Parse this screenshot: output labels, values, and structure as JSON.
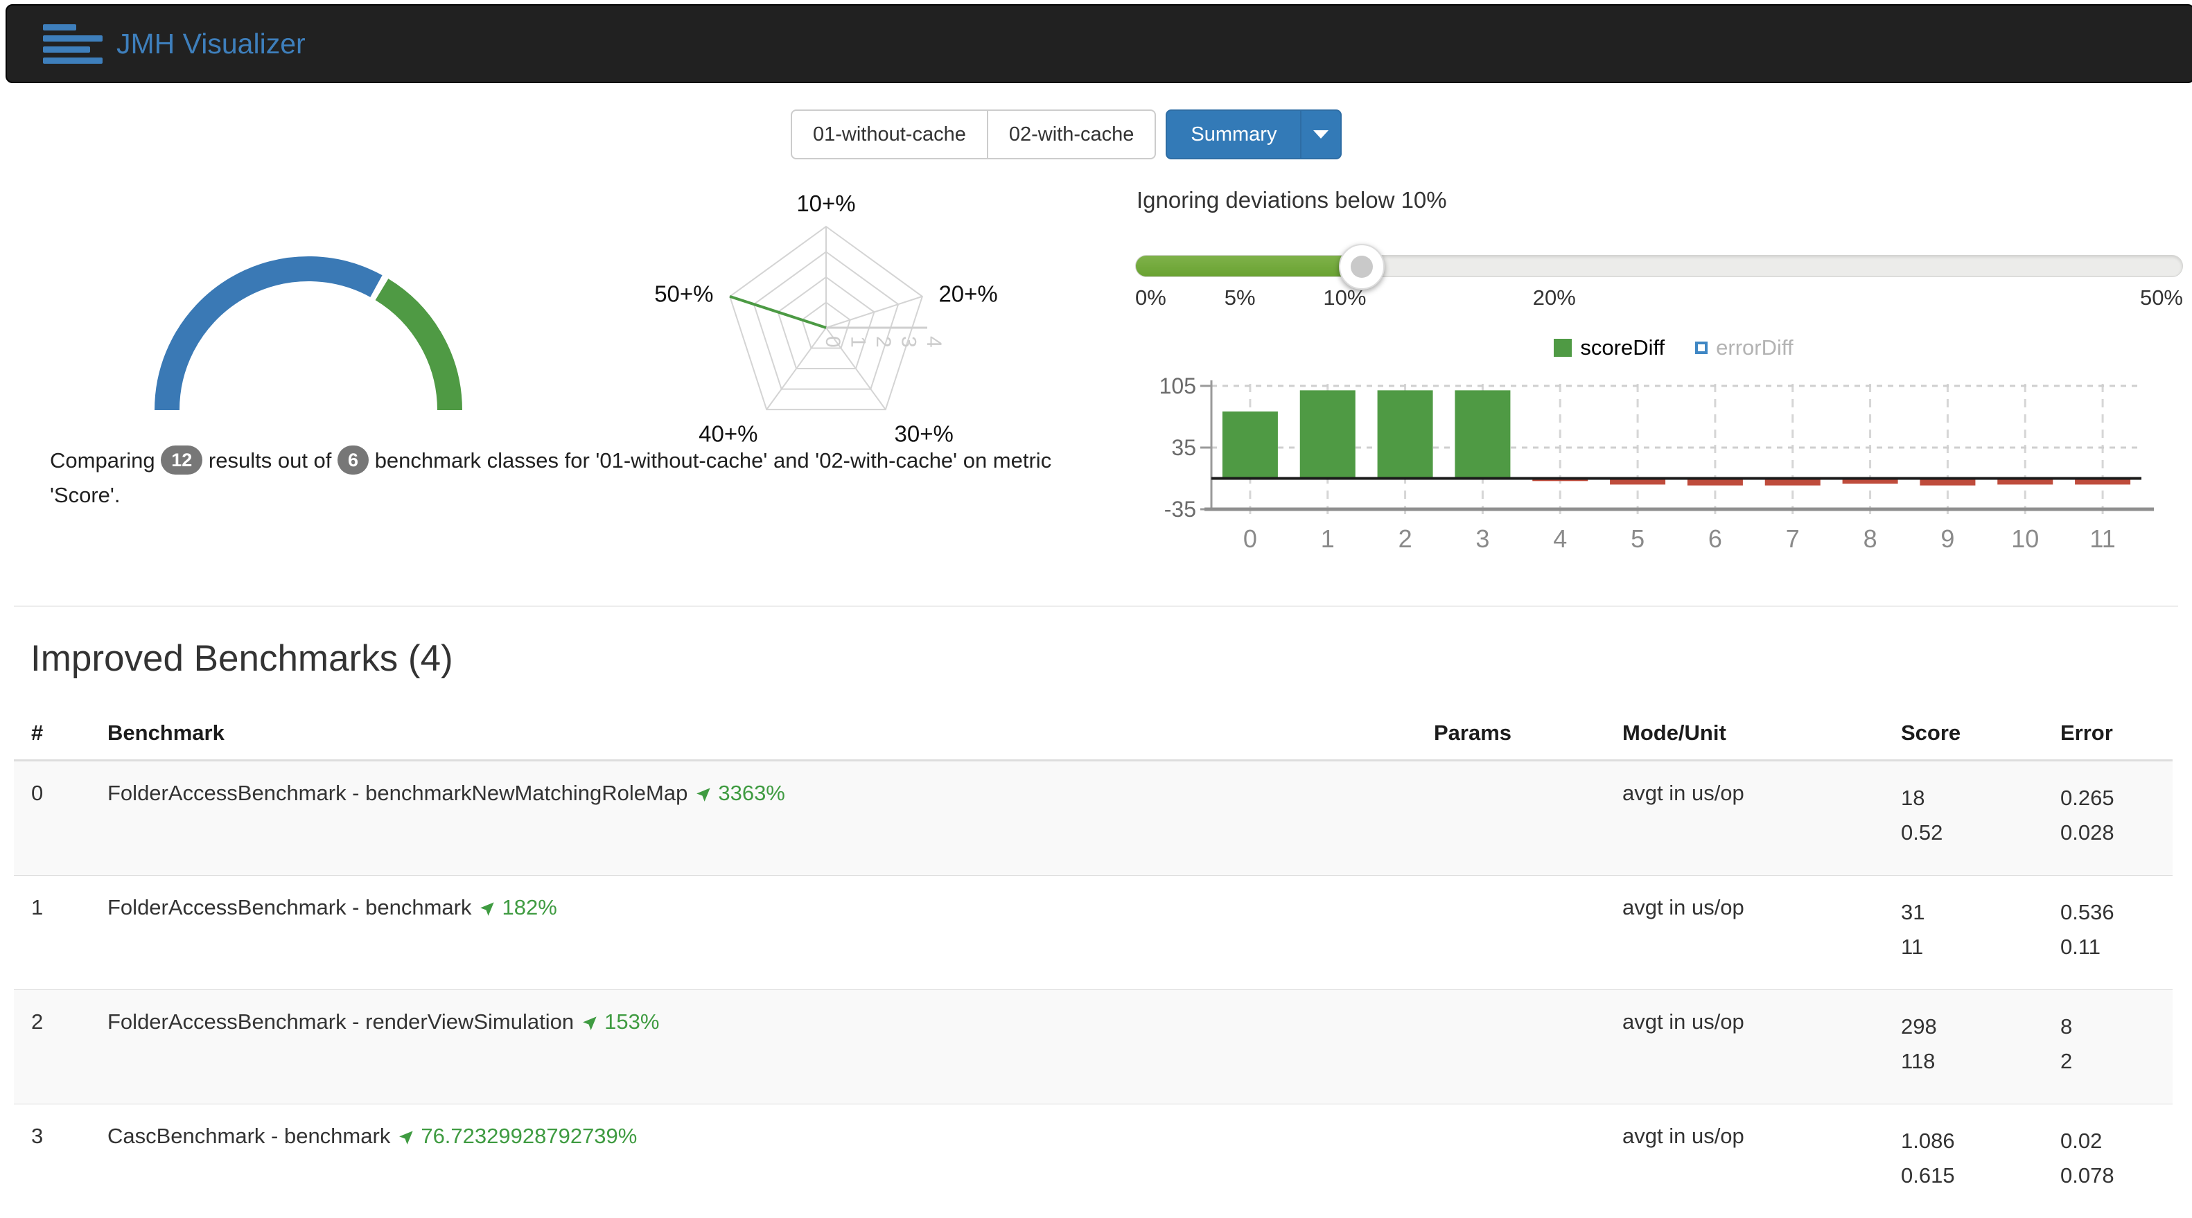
{
  "navbar": {
    "title": "JMH Visualizer"
  },
  "tabs": {
    "items": [
      {
        "label": "01-without-cache"
      },
      {
        "label": "02-with-cache"
      }
    ],
    "summary_label": "Summary"
  },
  "slider": {
    "title": "Ignoring deviations below 10%",
    "value_percent": 10,
    "labels": [
      {
        "text": "0%",
        "fraction": 0.0
      },
      {
        "text": "5%",
        "fraction": 0.1
      },
      {
        "text": "10%",
        "fraction": 0.2
      },
      {
        "text": "20%",
        "fraction": 0.4
      },
      {
        "text": "50%",
        "fraction": 1.0
      }
    ],
    "fill_color": "#74a83b"
  },
  "comparing": {
    "prefix": "Comparing",
    "results_count": "12",
    "middle": "results out of",
    "classes_count": "6",
    "suffix": "benchmark classes for '01-without-cache' and '02-with-cache' on metric 'Score'."
  },
  "section": {
    "title": "Improved Benchmarks (4)"
  },
  "colors": {
    "green": "#4f9a44",
    "blue": "#3a79b5",
    "red": "#bf4c3c",
    "grid": "#cfcfcf",
    "axis": "#9a9a9a",
    "tick_text": "#6b6b6b"
  },
  "chart_data": [
    {
      "name": "summary-gauge",
      "type": "pie",
      "shape": "semicircle-donut",
      "segments": [
        {
          "name": "not-improved",
          "value": 8,
          "color": "#3a79b5"
        },
        {
          "name": "improved",
          "value": 4,
          "color": "#4f9a44"
        }
      ]
    },
    {
      "name": "deviation-radar",
      "type": "radar",
      "axes": [
        "10+%",
        "20+%",
        "30+%",
        "40+%",
        "50+%"
      ],
      "rings": 4,
      "value_ticks": [
        "0",
        "1",
        "2",
        "3",
        "4"
      ],
      "series": [
        {
          "name": "improved",
          "values": [
            0,
            0,
            0,
            0,
            4
          ],
          "color": "#4c9a44"
        }
      ],
      "max": 4
    },
    {
      "name": "diff-bars",
      "type": "bar",
      "categories": [
        "0",
        "1",
        "2",
        "3",
        "4",
        "5",
        "6",
        "7",
        "8",
        "9",
        "10",
        "11"
      ],
      "series": [
        {
          "name": "scoreDiff",
          "enabled": true,
          "values": [
            76,
            100,
            100,
            100,
            -3,
            -7,
            -8,
            -8,
            -6,
            -8,
            -7,
            -7
          ]
        },
        {
          "name": "errorDiff",
          "enabled": false,
          "values": []
        }
      ],
      "yticks": [
        105,
        35,
        -35
      ],
      "ylim": [
        -35,
        105
      ],
      "legend_position": "top",
      "grid": true
    }
  ],
  "table": {
    "headers": [
      "#",
      "Benchmark",
      "Params",
      "Mode/Unit",
      "Score",
      "Error"
    ],
    "rows": [
      {
        "index": "0",
        "benchmark": "FolderAccessBenchmark - benchmarkNewMatchingRoleMap",
        "change": "3363%",
        "params": "",
        "mode_unit": "avgt in us/op",
        "score": [
          "18",
          "0.52"
        ],
        "error": [
          "0.265",
          "0.028"
        ]
      },
      {
        "index": "1",
        "benchmark": "FolderAccessBenchmark - benchmark",
        "change": "182%",
        "params": "",
        "mode_unit": "avgt in us/op",
        "score": [
          "31",
          "11"
        ],
        "error": [
          "0.536",
          "0.11"
        ]
      },
      {
        "index": "2",
        "benchmark": "FolderAccessBenchmark - renderViewSimulation",
        "change": "153%",
        "params": "",
        "mode_unit": "avgt in us/op",
        "score": [
          "298",
          "118"
        ],
        "error": [
          "8",
          "2"
        ]
      },
      {
        "index": "3",
        "benchmark": "CascBenchmark - benchmark",
        "change": "76.72329928792739%",
        "params": "",
        "mode_unit": "avgt in us/op",
        "score": [
          "1.086",
          "0.615"
        ],
        "error": [
          "0.02",
          "0.078"
        ]
      }
    ]
  }
}
